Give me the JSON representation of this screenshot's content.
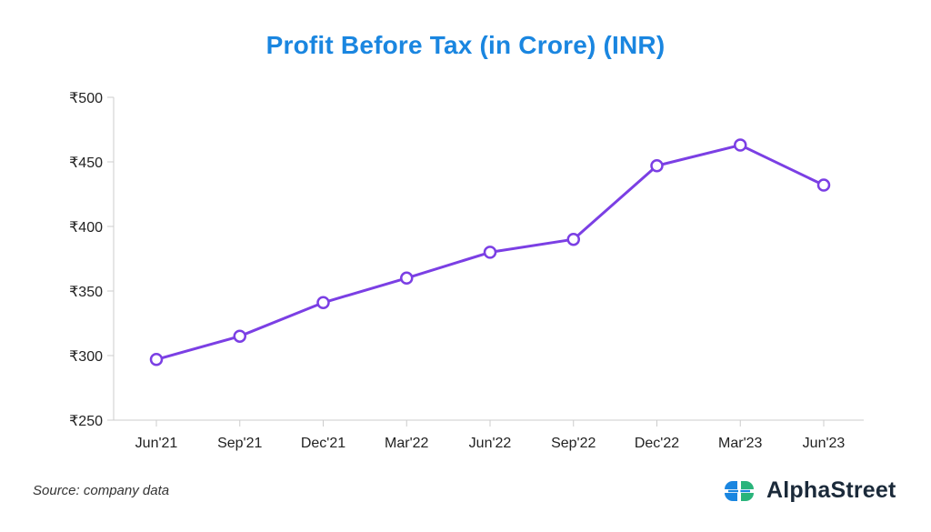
{
  "title": "Profit Before Tax (in Crore) (INR)",
  "source": "Source: company data",
  "brand": {
    "name": "AlphaStreet",
    "logo_icon": "alphastreet-logo-icon",
    "logo_colors": [
      "#1a86e0",
      "#2ab47b"
    ]
  },
  "colors": {
    "title": "#1a86e0",
    "line": "#7b3fe4",
    "axis": "#cccccc"
  },
  "chart_data": {
    "type": "line",
    "title": "Profit Before Tax (in Crore) (INR)",
    "categories": [
      "Jun'21",
      "Sep'21",
      "Dec'21",
      "Mar'22",
      "Jun'22",
      "Sep'22",
      "Dec'22",
      "Mar'23",
      "Jun'23"
    ],
    "series": [
      {
        "values": [
          297,
          315,
          341,
          360,
          380,
          390,
          447,
          463,
          432
        ]
      }
    ],
    "y_ticks": [
      "₹250",
      "₹300",
      "₹350",
      "₹400",
      "₹450",
      "₹500"
    ],
    "ylim": [
      250,
      500
    ],
    "xlabel": "",
    "ylabel": "",
    "grid": false,
    "markers": "hollow-circle"
  }
}
